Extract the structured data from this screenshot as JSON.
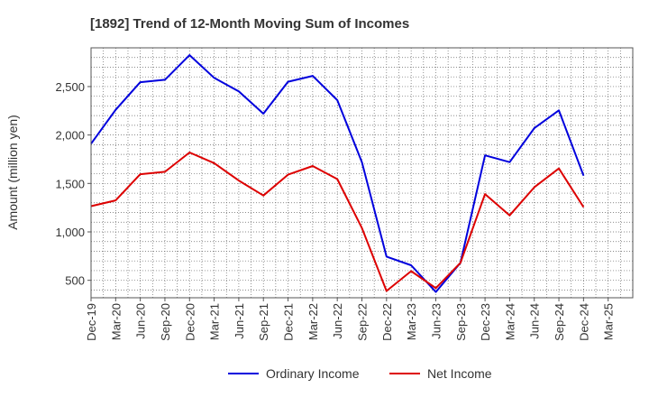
{
  "chart_data": {
    "type": "line",
    "title": "[1892]  Trend of 12-Month Moving Sum of Incomes",
    "xlabel": "",
    "ylabel": "Amount (million yen)",
    "ylim": [
      320,
      2900
    ],
    "yticks": [
      500,
      1000,
      1500,
      2000,
      2500
    ],
    "ytick_labels": [
      "500",
      "1,000",
      "1,500",
      "2,000",
      "2,500"
    ],
    "grid": true,
    "legend": "bottom-center",
    "categories": [
      "Dec-19",
      "Mar-20",
      "Jun-20",
      "Sep-20",
      "Dec-20",
      "Mar-21",
      "Jun-21",
      "Sep-21",
      "Dec-21",
      "Mar-22",
      "Jun-22",
      "Sep-22",
      "Dec-22",
      "Mar-23",
      "Jun-23",
      "Sep-23",
      "Dec-23",
      "Mar-24",
      "Jun-24",
      "Sep-24",
      "Dec-24",
      "Mar-25"
    ],
    "series": [
      {
        "name": "Ordinary Income",
        "color": "#0000dd",
        "values": [
          1910,
          2260,
          2545,
          2570,
          2825,
          2590,
          2450,
          2220,
          2550,
          2610,
          2360,
          1720,
          745,
          655,
          380,
          680,
          1790,
          1720,
          2070,
          2255,
          1580,
          null
        ]
      },
      {
        "name": "Net Income",
        "color": "#dd0000",
        "values": [
          1265,
          1325,
          1595,
          1620,
          1820,
          1710,
          1530,
          1375,
          1590,
          1680,
          1545,
          1040,
          390,
          595,
          420,
          680,
          1390,
          1170,
          1460,
          1655,
          1255,
          null
        ]
      }
    ]
  }
}
